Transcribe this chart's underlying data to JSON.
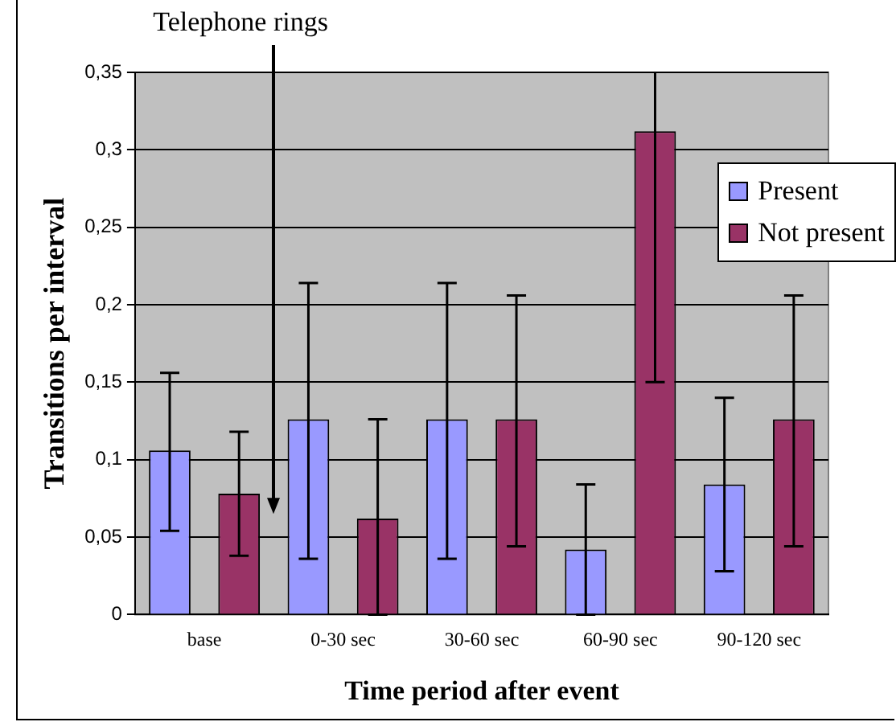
{
  "chart_data": {
    "type": "bar",
    "xlabel": "Time period after event",
    "ylabel": "Transitions per interval",
    "categories": [
      "base",
      "0-30 sec",
      "30-60 sec",
      "60-90 sec",
      "90-120 sec"
    ],
    "series": [
      {
        "name": "Present",
        "color": "#9999ff",
        "values": [
          0.106,
          0.126,
          0.126,
          0.042,
          0.084
        ],
        "errors": [
          [
            0.054,
            0.156
          ],
          [
            0.036,
            0.214
          ],
          [
            0.036,
            0.214
          ],
          [
            0,
            0.084
          ],
          [
            0.028,
            0.14
          ]
        ]
      },
      {
        "name": "Not present",
        "color": "#993366",
        "values": [
          0.078,
          0.062,
          0.126,
          0.312,
          0.126
        ],
        "errors": [
          [
            0.038,
            0.118
          ],
          [
            0,
            0.126
          ],
          [
            0.044,
            0.206
          ],
          [
            0.15,
            0.35
          ],
          [
            0.044,
            0.206
          ]
        ]
      }
    ],
    "ylim": [
      0,
      0.35
    ],
    "yticks": [
      {
        "value": 0,
        "label": "0"
      },
      {
        "value": 0.05,
        "label": "0,05"
      },
      {
        "value": 0.1,
        "label": "0,1"
      },
      {
        "value": 0.15,
        "label": "0,15"
      },
      {
        "value": 0.2,
        "label": "0,2"
      },
      {
        "value": 0.25,
        "label": "0,25"
      },
      {
        "value": 0.3,
        "label": "0,3"
      },
      {
        "value": 0.35,
        "label": "0,35"
      }
    ],
    "grid": "y",
    "legend": "right",
    "annotations": [
      "Telephone rings"
    ]
  }
}
